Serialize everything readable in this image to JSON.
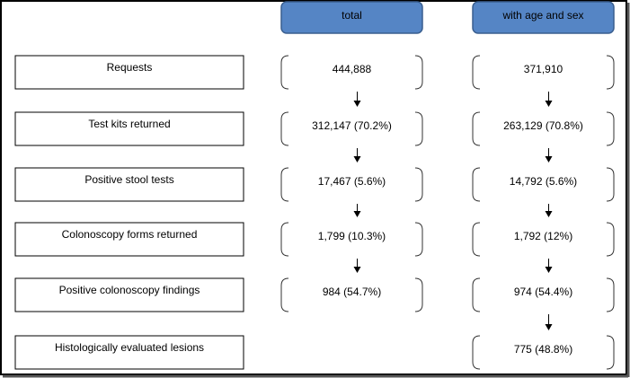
{
  "columns": [
    "total",
    "with age and sex"
  ],
  "rows": [
    {
      "label": "Requests",
      "total": "444,888",
      "with_age_and_sex": "371,910"
    },
    {
      "label": "Test kits returned",
      "total": "312,147 (70.2%)",
      "with_age_and_sex": "263,129 (70.8%)"
    },
    {
      "label": "Positive stool tests",
      "total": "17,467 (5.6%)",
      "with_age_and_sex": "14,792 (5.6%)"
    },
    {
      "label": "Colonoscopy forms returned",
      "total": "1,799 (10.3%)",
      "with_age_and_sex": "1,792 (12%)"
    },
    {
      "label": "Positive colonoscopy findings",
      "total": "984 (54.7%)",
      "with_age_and_sex": "974 (54.4%)"
    },
    {
      "label": "Histologically evaluated lesions",
      "with_age_and_sex": "775 (48.8%)"
    }
  ]
}
